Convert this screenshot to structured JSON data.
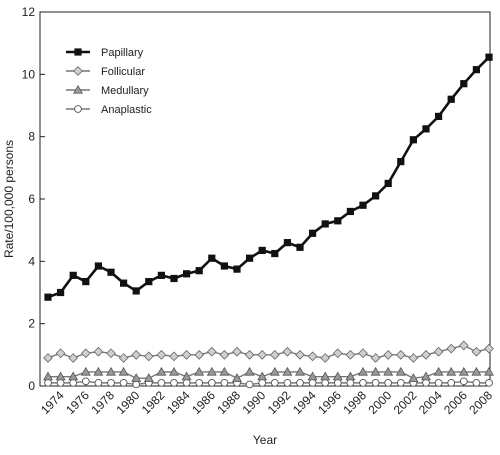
{
  "chart_data": {
    "type": "line",
    "xlabel": "Year",
    "ylabel": "Rate/100,000 persons",
    "ylim": [
      0,
      12
    ],
    "yticks": [
      0,
      2,
      4,
      6,
      8,
      10,
      12
    ],
    "xlim": [
      1973,
      2008
    ],
    "xticks": [
      1974,
      1976,
      1978,
      1980,
      1982,
      1984,
      1986,
      1988,
      1990,
      1992,
      1994,
      1996,
      1998,
      2000,
      2002,
      2004,
      2006,
      2008
    ],
    "x": [
      1973,
      1974,
      1975,
      1976,
      1977,
      1978,
      1979,
      1980,
      1981,
      1982,
      1983,
      1984,
      1985,
      1986,
      1987,
      1988,
      1989,
      1990,
      1991,
      1992,
      1993,
      1994,
      1995,
      1996,
      1997,
      1998,
      1999,
      2000,
      2001,
      2002,
      2003,
      2004,
      2005,
      2006,
      2007,
      2008
    ],
    "legend_position": "top-left",
    "grid": false,
    "series": [
      {
        "name": "Papillary",
        "marker": "square",
        "color": "#222222",
        "values": [
          2.85,
          3.0,
          3.55,
          3.35,
          3.85,
          3.65,
          3.3,
          3.05,
          3.35,
          3.55,
          3.45,
          3.6,
          3.7,
          4.1,
          3.85,
          3.75,
          4.1,
          4.35,
          4.25,
          4.6,
          4.45,
          4.9,
          5.2,
          5.3,
          5.6,
          5.8,
          6.1,
          6.5,
          7.2,
          7.9,
          8.25,
          8.65,
          9.2,
          9.7,
          10.15,
          10.55
        ]
      },
      {
        "name": "Follicular",
        "marker": "diamond",
        "color": "#555555",
        "values": [
          0.9,
          1.05,
          0.9,
          1.05,
          1.1,
          1.05,
          0.9,
          1.0,
          0.95,
          1.0,
          0.95,
          1.0,
          1.0,
          1.1,
          1.0,
          1.1,
          1.0,
          1.0,
          1.0,
          1.1,
          1.0,
          0.95,
          0.9,
          1.05,
          1.0,
          1.05,
          0.9,
          1.0,
          1.0,
          0.9,
          1.0,
          1.1,
          1.2,
          1.3,
          1.1,
          1.2
        ]
      },
      {
        "name": "Medullary",
        "marker": "triangle",
        "color": "#555555",
        "values": [
          0.3,
          0.3,
          0.3,
          0.45,
          0.45,
          0.45,
          0.45,
          0.25,
          0.25,
          0.45,
          0.45,
          0.3,
          0.45,
          0.45,
          0.45,
          0.25,
          0.45,
          0.3,
          0.45,
          0.45,
          0.45,
          0.3,
          0.3,
          0.3,
          0.3,
          0.45,
          0.45,
          0.45,
          0.45,
          0.25,
          0.3,
          0.45,
          0.45,
          0.45,
          0.45,
          0.45
        ]
      },
      {
        "name": "Anaplastic",
        "marker": "circle",
        "color": "#555555",
        "values": [
          0.1,
          0.1,
          0.1,
          0.15,
          0.1,
          0.1,
          0.1,
          0.05,
          0.1,
          0.1,
          0.1,
          0.1,
          0.1,
          0.1,
          0.1,
          0.1,
          0.05,
          0.1,
          0.1,
          0.1,
          0.1,
          0.1,
          0.1,
          0.1,
          0.1,
          0.1,
          0.1,
          0.1,
          0.1,
          0.1,
          0.1,
          0.1,
          0.1,
          0.15,
          0.1,
          0.1
        ]
      }
    ]
  }
}
